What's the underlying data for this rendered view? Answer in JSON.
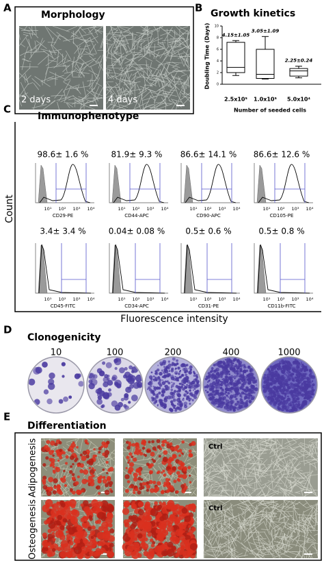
{
  "panels": {
    "a": {
      "label": "A",
      "title": "Morphology",
      "captions": [
        "2 days",
        "4 days"
      ]
    },
    "b": {
      "label": "B"
    },
    "c": {
      "label": "C",
      "title": "Immunophenotype",
      "y_label": "Count",
      "x_label": "Fluorescence intensity",
      "tick_labels": [
        "10¹",
        "10²",
        "10³",
        "10⁴"
      ],
      "markers": [
        {
          "name": "CD29-PE",
          "percent": "98.6± 1.6 %"
        },
        {
          "name": "CD44-APC",
          "percent": "81.9± 9.3 %"
        },
        {
          "name": "CD90-APC",
          "percent": "86.6± 14.1 %"
        },
        {
          "name": "CD105-PE",
          "percent": "86.6± 12.6 %"
        },
        {
          "name": "CD45-FITC",
          "percent": "3.4± 3.4 %"
        },
        {
          "name": "CD34-APC",
          "percent": "0.04± 0.08 %"
        },
        {
          "name": "CD31-PE",
          "percent": "0.5± 0.6 %"
        },
        {
          "name": "CD11b-FITC",
          "percent": "0.5± 0.8 %"
        }
      ]
    },
    "d": {
      "label": "D",
      "title": "Clonogenicity",
      "dishes": [
        10,
        100,
        200,
        400,
        1000
      ]
    },
    "e": {
      "label": "E",
      "title": "Differentiation",
      "rows": [
        {
          "name": "Adipogenesis",
          "ctrl": "Ctrl"
        },
        {
          "name": "Osteogenesis",
          "ctrl": "Ctrl"
        }
      ]
    }
  },
  "chart_data": {
    "type": "box",
    "title": "Growth kinetics",
    "y_label": "Doubling Time (Days)",
    "x_label": "Number of seeded cells",
    "categories": [
      "2.5x10⁵",
      "1.0x10⁵",
      "5.0x10⁴"
    ],
    "annotations": [
      "4.15±1.05",
      "3.05±1.09",
      "2.25±0.24"
    ],
    "min": [
      1.5,
      0.9,
      1.1
    ],
    "q1": [
      2.0,
      1.0,
      1.4
    ],
    "median": [
      2.9,
      1.7,
      2.3
    ],
    "q3": [
      7.2,
      6.0,
      2.7
    ],
    "max": [
      7.5,
      8.2,
      3.1
    ],
    "ylim": [
      0,
      10
    ],
    "yticks": [
      0,
      2,
      4,
      6,
      8,
      10
    ]
  }
}
